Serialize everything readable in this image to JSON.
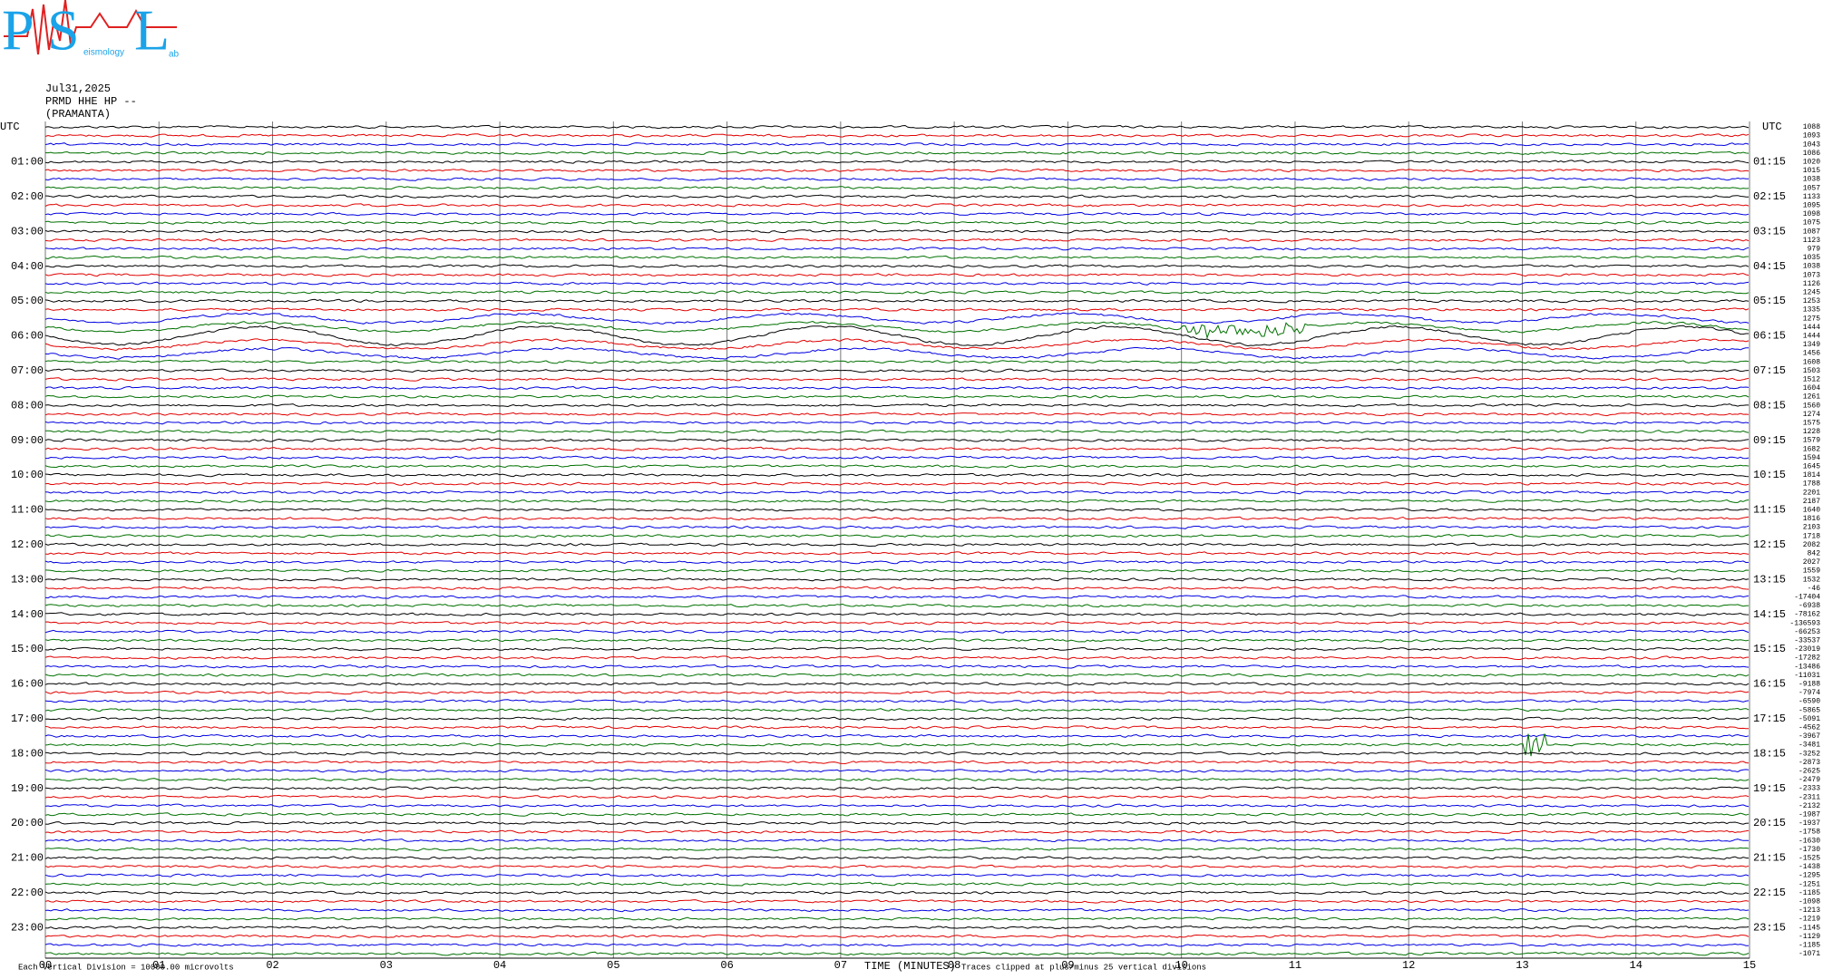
{
  "header": {
    "logo": {
      "letters": [
        "P",
        "S",
        "L"
      ],
      "words": [
        "eismology",
        "ab"
      ]
    },
    "date": "Jul31,2025",
    "station": "PRMD HHE HP --",
    "site": "(PRAMANTA)"
  },
  "axis": {
    "left_title": "UTC",
    "right_title": "UTC",
    "left_labels": [
      "01:00",
      "02:00",
      "03:00",
      "04:00",
      "05:00",
      "06:00",
      "07:00",
      "08:00",
      "09:00",
      "10:00",
      "11:00",
      "12:00",
      "13:00",
      "14:00",
      "15:00",
      "16:00",
      "17:00",
      "18:00",
      "19:00",
      "20:00",
      "21:00",
      "22:00",
      "23:00"
    ],
    "right_labels": [
      "01:15",
      "02:15",
      "03:15",
      "04:15",
      "05:15",
      "06:15",
      "07:15",
      "08:15",
      "09:15",
      "10:15",
      "11:15",
      "12:15",
      "13:15",
      "14:15",
      "15:15",
      "16:15",
      "17:15",
      "18:15",
      "19:15",
      "20:15",
      "21:15",
      "22:15",
      "23:15"
    ],
    "minutes": [
      "00",
      "01",
      "02",
      "03",
      "04",
      "05",
      "06",
      "07",
      "08",
      "09",
      "10",
      "11",
      "12",
      "13",
      "14",
      "15"
    ],
    "title": "TIME (MINUTES)",
    "scale_note": "Each Vertical Division = 10000.00 microvolts",
    "clip_note": "Traces clipped at plus/minus 25 vertical divisions"
  },
  "traces": {
    "offsets": [
      1088,
      1093,
      1043,
      1086,
      1020,
      1015,
      1038,
      1057,
      1133,
      1095,
      1098,
      1075,
      1087,
      1123,
      979,
      1035,
      1038,
      1073,
      1126,
      1245,
      1253,
      1335,
      1275,
      1444,
      1444,
      1349,
      1456,
      1608,
      1503,
      1512,
      1604,
      1261,
      1560,
      1274,
      1575,
      1228,
      1579,
      1682,
      1594,
      1645,
      1814,
      1788,
      2201,
      2187,
      1640,
      1816,
      2103,
      1718,
      2082,
      842,
      2027,
      1559,
      1532,
      -46,
      -17404,
      -6938,
      -78162,
      -136593,
      -66253,
      -33537,
      -23019,
      -17282,
      -13486,
      -11031,
      -9188,
      -7974,
      -6590,
      -5865,
      -5091,
      -4562,
      -3967,
      -3481,
      -3252,
      -2873,
      -2625,
      -2479,
      -2333,
      -2311,
      -2132,
      -1987,
      -1937,
      -1758,
      -1630,
      -1730,
      -1525,
      -1438,
      -1295,
      -1251,
      -1185,
      -1098,
      -1213,
      -1219,
      -1145,
      -1129,
      -1185,
      -1071
    ]
  }
}
